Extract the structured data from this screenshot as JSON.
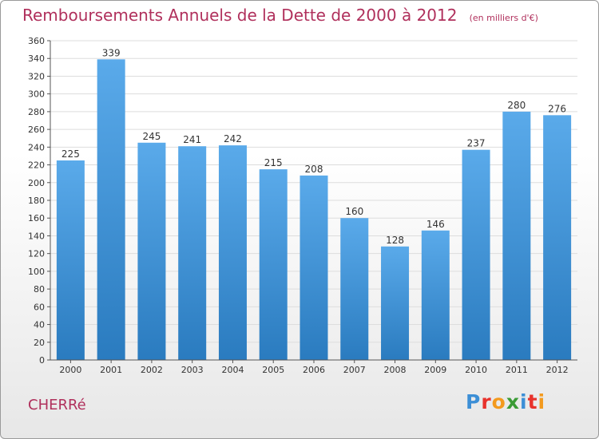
{
  "title": "Remboursements Annuels de la Dette de 2000 à 2012",
  "subtitle": "(en milliers d'€)",
  "commune": "CHERRé",
  "logo": {
    "text": "Proxiti",
    "letters": [
      {
        "char": "P",
        "color": "#3c8fd6"
      },
      {
        "char": "r",
        "color": "#e8322c"
      },
      {
        "char": "o",
        "color": "#f39a1e"
      },
      {
        "char": "x",
        "color": "#3a9b35"
      },
      {
        "char": "i",
        "color": "#3c8fd6"
      },
      {
        "char": "t",
        "color": "#e8322c"
      },
      {
        "char": "i",
        "color": "#f39a1e"
      }
    ]
  },
  "chart_data": {
    "type": "bar",
    "title": "Remboursements Annuels de la Dette de 2000 à 2012",
    "subtitle": "(en milliers d'€)",
    "categories": [
      "2000",
      "2001",
      "2002",
      "2003",
      "2004",
      "2005",
      "2006",
      "2007",
      "2008",
      "2009",
      "2010",
      "2011",
      "2012"
    ],
    "values": [
      225,
      339,
      245,
      241,
      242,
      215,
      208,
      160,
      128,
      146,
      237,
      280,
      276
    ],
    "ylim": [
      0,
      360
    ],
    "yticks": [
      0,
      20,
      40,
      60,
      80,
      100,
      120,
      140,
      160,
      180,
      200,
      220,
      240,
      260,
      280,
      300,
      320,
      340,
      360
    ],
    "grid": true,
    "colors": {
      "bar_top": "#5aaaea",
      "bar_bottom": "#2a7bbf",
      "grid": "#dddddd",
      "axis": "#555555",
      "text": "#333333"
    }
  }
}
